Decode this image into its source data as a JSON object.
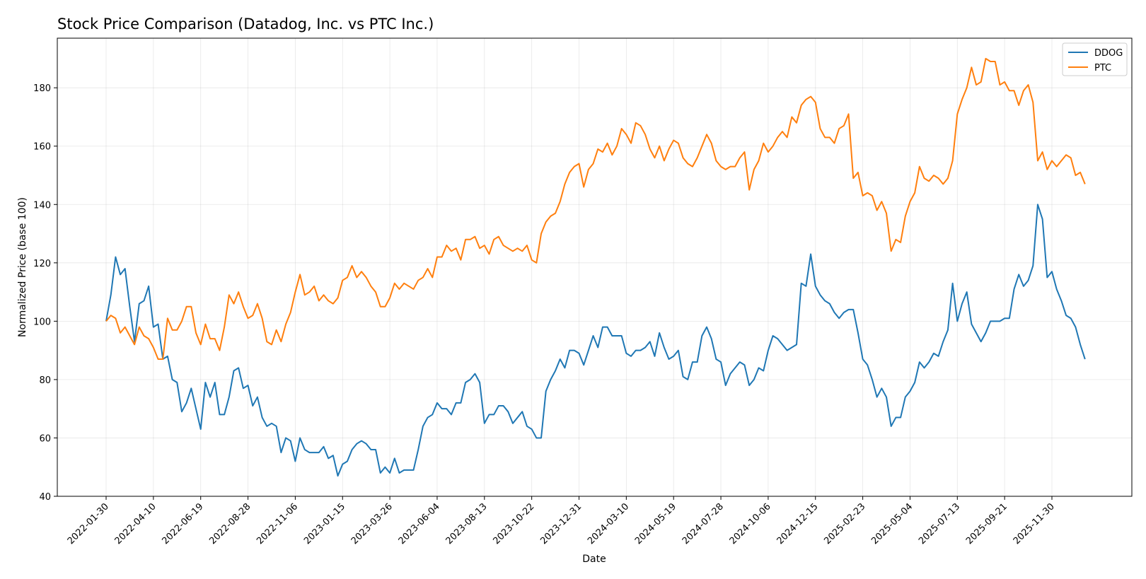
{
  "chart_data": {
    "type": "line",
    "title": "Stock Price Comparison (Datadog, Inc. vs PTC Inc.)",
    "xlabel": "Date",
    "ylabel": "Normalized Price (base 100)",
    "ylim": [
      40,
      197
    ],
    "yticks": [
      40,
      60,
      80,
      100,
      120,
      140,
      160,
      180
    ],
    "xtick_labels": [
      "2022-01-30",
      "2022-04-10",
      "2022-06-19",
      "2022-08-28",
      "2022-11-06",
      "2023-01-15",
      "2023-03-26",
      "2023-06-04",
      "2023-08-13",
      "2023-10-22",
      "2023-12-31",
      "2024-03-10",
      "2024-05-19",
      "2024-07-28",
      "2024-10-06",
      "2024-12-15",
      "2025-02-23",
      "2025-05-04",
      "2025-07-13",
      "2025-09-21",
      "2025-11-30"
    ],
    "x_start": "2022-01-30",
    "x_step_days": 7,
    "grid": true,
    "legend_position": "top-right",
    "series": [
      {
        "name": "DDOG",
        "color": "#1f77b4",
        "values": [
          100,
          109,
          122,
          116,
          118,
          105,
          93,
          106,
          107,
          112,
          98,
          99,
          87,
          88,
          80,
          79,
          69,
          72,
          77,
          70,
          63,
          79,
          74,
          79,
          68,
          68,
          74,
          83,
          84,
          77,
          78,
          71,
          74,
          67,
          64,
          65,
          64,
          55,
          60,
          59,
          52,
          60,
          56,
          55,
          55,
          55,
          57,
          53,
          54,
          47,
          51,
          52,
          56,
          58,
          59,
          58,
          56,
          56,
          48,
          50,
          48,
          53,
          48,
          49,
          49,
          49,
          56,
          64,
          67,
          68,
          72,
          70,
          70,
          68,
          72,
          72,
          79,
          80,
          82,
          79,
          65,
          68,
          68,
          71,
          71,
          69,
          65,
          67,
          69,
          64,
          63,
          60,
          60,
          76,
          80,
          83,
          87,
          84,
          90,
          90,
          89,
          85,
          90,
          95,
          91,
          98,
          98,
          95,
          95,
          95,
          89,
          88,
          90,
          90,
          91,
          93,
          88,
          96,
          91,
          87,
          88,
          90,
          81,
          80,
          86,
          86,
          95,
          98,
          94,
          87,
          86,
          78,
          82,
          84,
          86,
          85,
          78,
          80,
          84,
          83,
          90,
          95,
          94,
          92,
          90,
          91,
          92,
          113,
          112,
          123,
          112,
          109,
          107,
          106,
          103,
          101,
          103,
          104,
          104,
          96,
          87,
          85,
          80,
          74,
          77,
          74,
          64,
          67,
          67,
          74,
          76,
          79,
          86,
          84,
          86,
          89,
          88,
          93,
          97,
          113,
          100,
          106,
          110,
          99,
          96,
          93,
          96,
          100,
          100,
          100,
          101,
          101,
          111,
          116,
          112,
          114,
          119,
          140,
          135,
          115,
          117,
          111,
          107,
          102,
          101,
          98,
          92,
          87
        ]
      },
      {
        "name": "PTC",
        "color": "#ff7f0e",
        "values": [
          100,
          102,
          101,
          96,
          98,
          95,
          92,
          98,
          95,
          94,
          91,
          87,
          87,
          101,
          97,
          97,
          100,
          105,
          105,
          96,
          92,
          99,
          94,
          94,
          90,
          98,
          109,
          106,
          110,
          105,
          101,
          102,
          106,
          101,
          93,
          92,
          97,
          93,
          99,
          103,
          110,
          116,
          109,
          110,
          112,
          107,
          109,
          107,
          106,
          108,
          114,
          115,
          119,
          115,
          117,
          115,
          112,
          110,
          105,
          105,
          108,
          113,
          111,
          113,
          112,
          111,
          114,
          115,
          118,
          115,
          122,
          122,
          126,
          124,
          125,
          121,
          128,
          128,
          129,
          125,
          126,
          123,
          128,
          129,
          126,
          125,
          124,
          125,
          124,
          126,
          121,
          120,
          130,
          134,
          136,
          137,
          141,
          147,
          151,
          153,
          154,
          146,
          152,
          154,
          159,
          158,
          161,
          157,
          160,
          166,
          164,
          161,
          168,
          167,
          164,
          159,
          156,
          160,
          155,
          159,
          162,
          161,
          156,
          154,
          153,
          156,
          160,
          164,
          161,
          155,
          153,
          152,
          153,
          153,
          156,
          158,
          145,
          152,
          155,
          161,
          158,
          160,
          163,
          165,
          163,
          170,
          168,
          174,
          176,
          177,
          175,
          166,
          163,
          163,
          161,
          166,
          167,
          171,
          149,
          151,
          143,
          144,
          143,
          138,
          141,
          137,
          124,
          128,
          127,
          136,
          141,
          144,
          153,
          149,
          148,
          150,
          149,
          147,
          149,
          155,
          171,
          176,
          180,
          187,
          181,
          182,
          190,
          189,
          189,
          181,
          182,
          179,
          179,
          174,
          179,
          181,
          175,
          155,
          158,
          152,
          155,
          153,
          155,
          157,
          156,
          150,
          151,
          147
        ]
      }
    ]
  }
}
